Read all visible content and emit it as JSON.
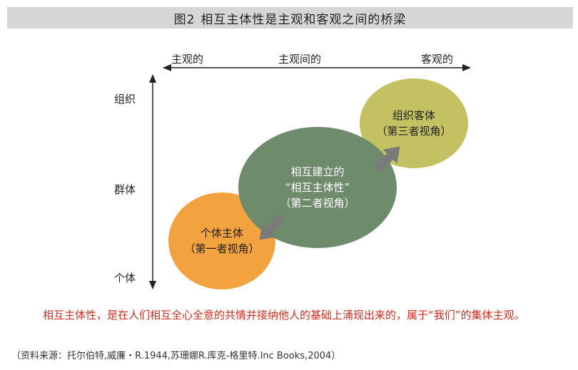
{
  "title": {
    "fig": "图2",
    "text": "相互主体性是主观和客观之间的桥梁"
  },
  "x_axis": {
    "left": "主观的",
    "middle": "主观间的",
    "right": "客观的"
  },
  "y_axis": {
    "top": "组织",
    "middle": "群体",
    "bottom": "个体"
  },
  "circles": {
    "individual": {
      "line1": "个体主体",
      "line2": "（第一者视角）"
    },
    "intersubjective": {
      "line1": "相互建立的",
      "line2": "“相互主体性”",
      "line3": "（第二者视角）"
    },
    "organization": {
      "line1": "组织客体",
      "line2": "（第三者视角）"
    }
  },
  "caption": "相互主体性，是在人们相互全心全意的共情并接纳他人的基础上涌现出来的，属于“我们”的集体主观。",
  "source": "（资料来源：托尔伯特,威廉・R.1944,苏珊娜R.库克-格里特.Inc Books,2004）",
  "colors": {
    "individual": "#f2a23e",
    "intersubjective": "#6e8b6b",
    "organization": "#c4c162",
    "arrow": "#7a7a7a",
    "caption": "#d12b1e"
  }
}
